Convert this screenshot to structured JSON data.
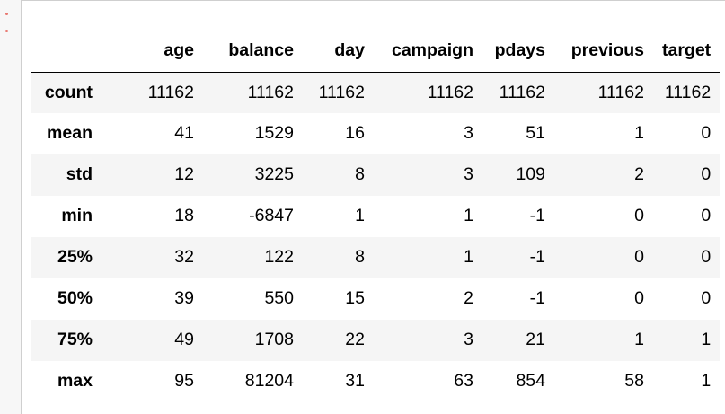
{
  "table": {
    "columns": [
      "age",
      "balance",
      "day",
      "campaign",
      "pdays",
      "previous",
      "target"
    ],
    "rows": [
      {
        "label": "count",
        "values": [
          "11162",
          "11162",
          "11162",
          "11162",
          "11162",
          "11162",
          "11162"
        ]
      },
      {
        "label": "mean",
        "values": [
          "41",
          "1529",
          "16",
          "3",
          "51",
          "1",
          "0"
        ]
      },
      {
        "label": "std",
        "values": [
          "12",
          "3225",
          "8",
          "3",
          "109",
          "2",
          "0"
        ]
      },
      {
        "label": "min",
        "values": [
          "18",
          "-6847",
          "1",
          "1",
          "-1",
          "0",
          "0"
        ]
      },
      {
        "label": "25%",
        "values": [
          "32",
          "122",
          "8",
          "1",
          "-1",
          "0",
          "0"
        ]
      },
      {
        "label": "50%",
        "values": [
          "39",
          "550",
          "15",
          "2",
          "-1",
          "0",
          "0"
        ]
      },
      {
        "label": "75%",
        "values": [
          "49",
          "1708",
          "22",
          "3",
          "21",
          "1",
          "1"
        ]
      },
      {
        "label": "max",
        "values": [
          "95",
          "81204",
          "31",
          "63",
          "854",
          "58",
          "1"
        ]
      }
    ]
  },
  "colors": {
    "stripe": "#f5f5f5",
    "gutter_marker": "#e8776f",
    "border": "#cfcfcf"
  },
  "icons": {
    "collapse": "vertical-dots-icon"
  }
}
